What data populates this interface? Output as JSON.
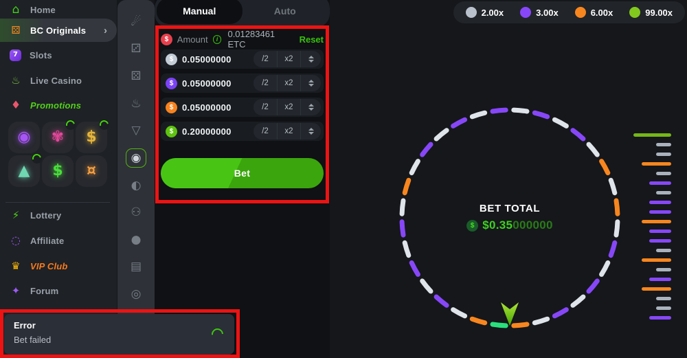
{
  "icons": {
    "home": "⌂",
    "bc_dice": "⚄",
    "slots": "7",
    "live_casino": "♨",
    "promotions": "♦",
    "lottery": "⚡",
    "affiliate": "◌",
    "vip": "♛",
    "forum": "✦",
    "chevron_right": "›",
    "dollar": "$",
    "info": "i"
  },
  "sidebar": {
    "home": "Home",
    "bc_originals": "BC Originals",
    "slots": "Slots",
    "live_casino": "Live Casino",
    "promotions": "Promotions",
    "lottery": "Lottery",
    "affiliate": "Affiliate",
    "vip_club": "VIP Club",
    "forum": "Forum",
    "tiles": [
      {
        "name": "spin-target",
        "glyph": "◉",
        "color": "#a855f7",
        "badge": false
      },
      {
        "name": "wheel-charm",
        "glyph": "✾",
        "color": "#e2479a",
        "badge": true
      },
      {
        "name": "piggy-bank",
        "glyph": "$",
        "color": "#e5b53c",
        "badge": true
      },
      {
        "name": "rocket",
        "glyph": "▲",
        "color": "#6fd7b2",
        "badge": true
      },
      {
        "name": "dollar-tag",
        "glyph": "$",
        "color": "#4ade3c",
        "badge": false
      },
      {
        "name": "fortune-coin",
        "glyph": "¤",
        "color": "#f59e3f",
        "badge": false
      }
    ]
  },
  "strip": {
    "selected_index": 5,
    "icons": [
      {
        "name": "crash-game",
        "glyph": "☄"
      },
      {
        "name": "classic-dice",
        "glyph": "⚂"
      },
      {
        "name": "hash-dice",
        "glyph": "⚄"
      },
      {
        "name": "limbo-game",
        "glyph": "♨"
      },
      {
        "name": "plinko-game",
        "glyph": "▽"
      },
      {
        "name": "wheel-game",
        "glyph": "◉"
      },
      {
        "name": "coinflip-game",
        "glyph": "◐"
      },
      {
        "name": "trenball-game",
        "glyph": "⚇"
      },
      {
        "name": "ball-game",
        "glyph": "●"
      },
      {
        "name": "cards-game",
        "glyph": "▤"
      },
      {
        "name": "keno-game",
        "glyph": "◎"
      },
      {
        "name": "sword-game",
        "glyph": "⚔"
      },
      {
        "name": "roulette-game",
        "glyph": "◬"
      }
    ]
  },
  "bet_panel": {
    "tabs": {
      "manual": "Manual",
      "auto": "Auto",
      "selected": "Manual"
    },
    "amount": {
      "label": "Amount",
      "value": "0.01283461 ETC",
      "reset_label": "Reset"
    },
    "controls": {
      "half": "/2",
      "double": "x2"
    },
    "rows": [
      {
        "tier": "2.00x",
        "color": "#c4ccd6",
        "value": "0.05000000"
      },
      {
        "tier": "3.00x",
        "color": "#7b42f6",
        "value": "0.05000000"
      },
      {
        "tier": "6.00x",
        "color": "#f8831e",
        "value": "0.05000000"
      },
      {
        "tier": "99.00x",
        "color": "#5ec30f",
        "value": "0.20000000"
      }
    ],
    "bet_button_label": "Bet"
  },
  "legend": {
    "items": [
      {
        "label": "2.00x",
        "color": "#b9c1cc"
      },
      {
        "label": "3.00x",
        "color": "#8747f8"
      },
      {
        "label": "6.00x",
        "color": "#f8861e"
      },
      {
        "label": "99.00x",
        "color": "#82c91e"
      }
    ]
  },
  "wheel": {
    "bet_total_label": "BET TOTAL",
    "total_main": "$0.35",
    "total_zeros": "000000",
    "segment_colors": {
      "white": "#dfe4ea",
      "purple": "#8747f8",
      "orange": "#f8861e",
      "green": "#29e17c"
    },
    "segments": [
      "white",
      "purple",
      "white",
      "purple",
      "white",
      "orange",
      "white",
      "orange",
      "white",
      "purple",
      "white",
      "purple",
      "white",
      "purple",
      "white",
      "orange",
      "green",
      "orange",
      "white",
      "purple",
      "white",
      "purple",
      "white",
      "purple",
      "white",
      "orange",
      "white",
      "purple",
      "white",
      "purple",
      "white",
      "purple"
    ]
  },
  "history": {
    "tier_colors": {
      "2": "#aab2bd",
      "3": "#8747f8",
      "6": "#f8861e",
      "99": "#74b816"
    },
    "tier_widths": {
      "2": 22,
      "3": 32,
      "6": 43,
      "99": 55
    },
    "bars": [
      "99",
      "2",
      "2",
      "6",
      "2",
      "3",
      "2",
      "3",
      "3",
      "6",
      "3",
      "3",
      "2",
      "6",
      "2",
      "3",
      "6",
      "2",
      "2",
      "3"
    ]
  },
  "toast": {
    "title": "Error",
    "message": "Bet failed"
  }
}
